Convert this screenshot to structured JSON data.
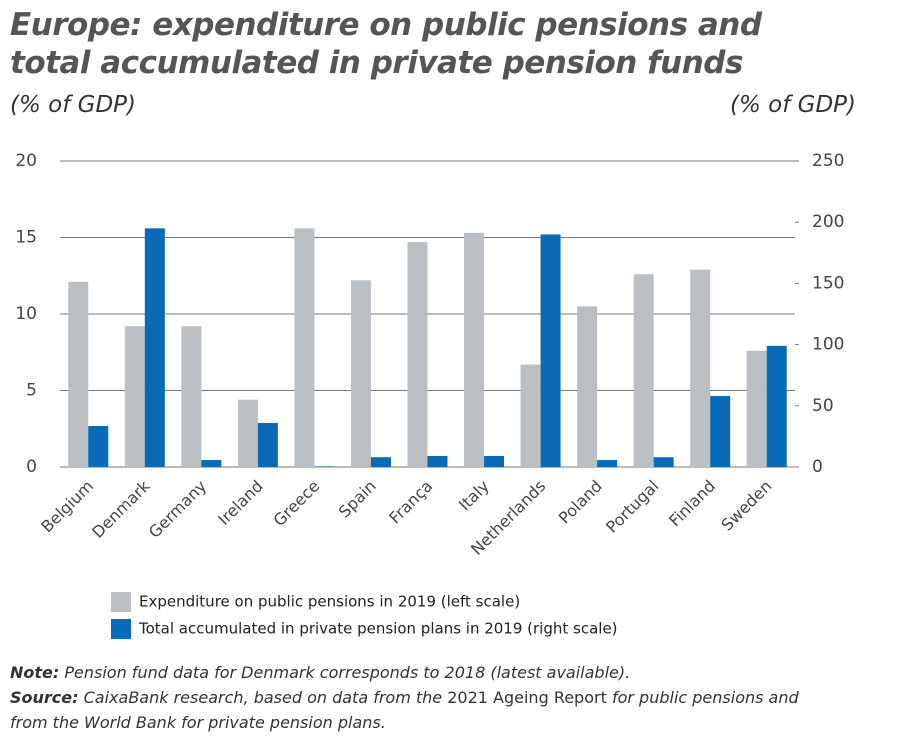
{
  "chart_data": {
    "type": "bar",
    "title": "Europe: expenditure on public pensions and total accumulated in private pension funds",
    "y_label": "(% of GDP)",
    "y2_label": "(% of GDP)",
    "categories": [
      "Belgium",
      "Denmark",
      "Germany",
      "Ireland",
      "Greece",
      "Spain",
      "França",
      "Italy",
      "Netherlands",
      "Poland",
      "Portugal",
      "Finland",
      "Sweden"
    ],
    "series": [
      {
        "name": "Expenditure on public pensions in 2019 (left scale)",
        "color": "#b9bfc3",
        "values": [
          12.1,
          9.2,
          9.2,
          4.4,
          15.6,
          12.2,
          14.7,
          15.3,
          6.7,
          10.5,
          12.6,
          12.9,
          7.6
        ]
      },
      {
        "name": "Total accumulated in private pension plans in 2019 (right scale)",
        "color": "#0a6ab5",
        "axis": "y2",
        "values": [
          33.5,
          195,
          5.7,
          36,
          0.5,
          8,
          9,
          9,
          190,
          5.7,
          8,
          58,
          99
        ]
      }
    ],
    "ylim": [
      0,
      20
    ],
    "yticks": [
      0,
      5,
      10,
      15,
      20
    ],
    "y2lim": [
      0,
      250
    ],
    "y2ticks": [
      0,
      50,
      100,
      150,
      200,
      250
    ],
    "grid": true
  },
  "note": {
    "label": "Note:",
    "text": "Pension fund data for Denmark corresponds to 2018 (latest available)."
  },
  "source": {
    "label": "Source:",
    "text_1": "CaixaBank research, based on data from the",
    "text_2": "2021 Ageing Report",
    "text_3": "for public pensions and from the World Bank for private pension plans."
  }
}
